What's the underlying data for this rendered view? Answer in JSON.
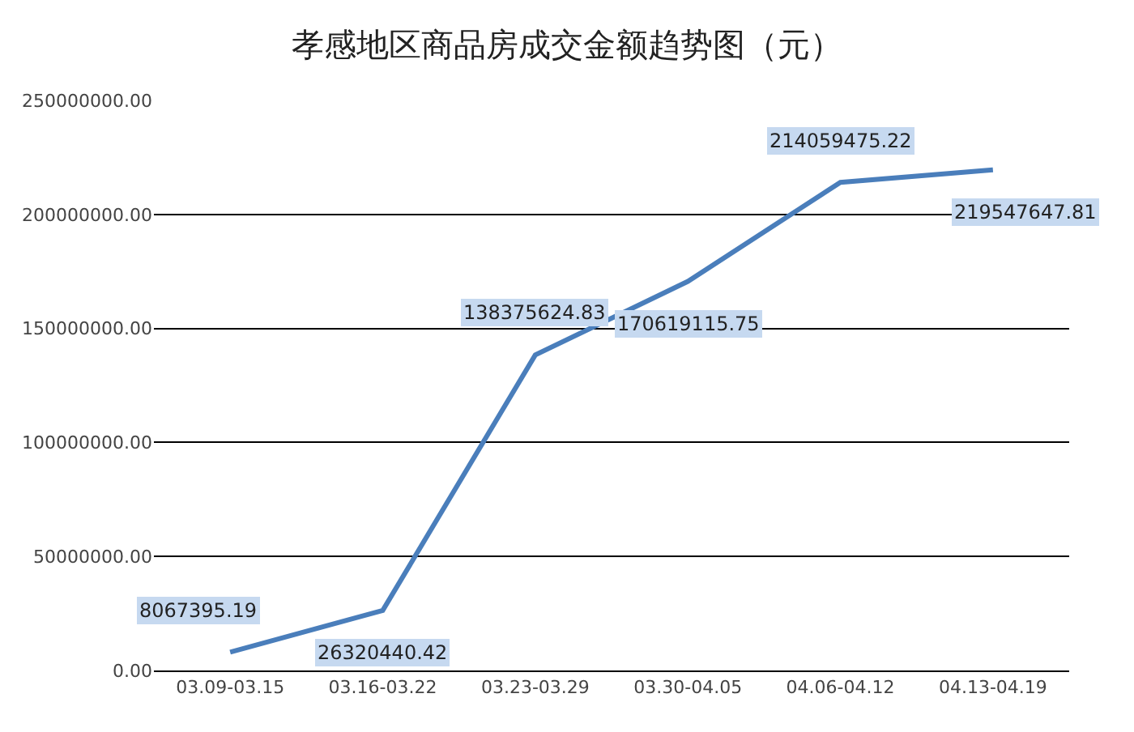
{
  "chart_data": {
    "type": "line",
    "title": "孝感地区商品房成交金额趋势图（元）",
    "categories": [
      "03.09-03.15",
      "03.16-03.22",
      "03.23-03.29",
      "03.30-04.05",
      "04.06-04.12",
      "04.13-04.19"
    ],
    "series": [
      {
        "color": "#4a7ebb",
        "values": [
          8067395.19,
          26320440.42,
          138375624.83,
          170619115.75,
          214059475.22,
          219547647.81
        ],
        "value_labels": [
          "8067395.19",
          "26320440.42",
          "138375624.83",
          "170619115.75",
          "214059475.22",
          "219547647.81"
        ]
      }
    ],
    "ylim": [
      0,
      250000000
    ],
    "yticks": [
      {
        "value": 0,
        "label": "0.00"
      },
      {
        "value": 50000000,
        "label": "50000000.00"
      },
      {
        "value": 100000000,
        "label": "100000000.00"
      },
      {
        "value": 150000000,
        "label": "150000000.00"
      },
      {
        "value": 200000000,
        "label": "200000000.00"
      },
      {
        "value": 250000000,
        "label": "250000000.00"
      }
    ],
    "grid": "y",
    "marker": "none",
    "line_style": "solid"
  }
}
